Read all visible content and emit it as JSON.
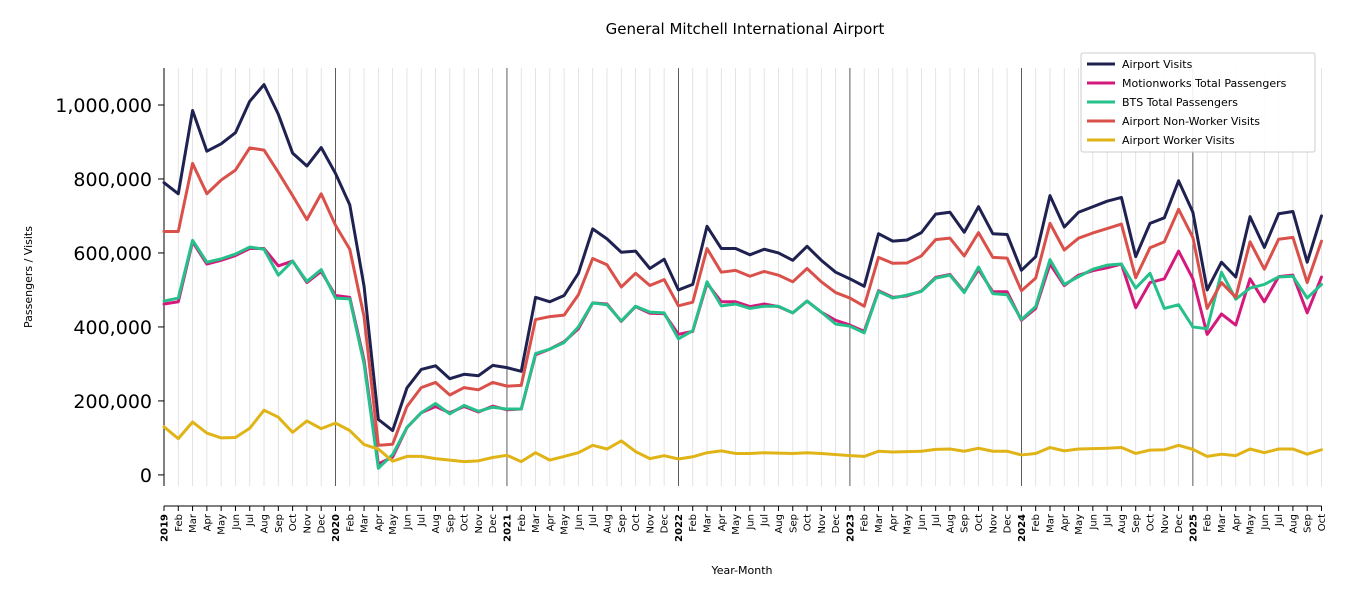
{
  "chart_data": {
    "type": "line",
    "title": "General Mitchell International Airport",
    "xlabel": "Year-Month",
    "ylabel": "Passengers / Visits",
    "ylim": [
      -30000,
      1100000
    ],
    "yticks": [
      0,
      200000,
      400000,
      600000,
      800000,
      1000000
    ],
    "ytick_labels": [
      "0",
      "200,000",
      "400,000",
      "600,000",
      "800,000",
      "1,000,000"
    ],
    "grid": "vertical monthly gridlines; darker lines at each January",
    "legend_position": "top-right",
    "x": [
      "2019",
      "Feb",
      "Mar",
      "Apr",
      "May",
      "Jun",
      "Jul",
      "Aug",
      "Sep",
      "Oct",
      "Nov",
      "Dec",
      "2020",
      "Feb",
      "Mar",
      "Apr",
      "May",
      "Jun",
      "Jul",
      "Aug",
      "Sep",
      "Oct",
      "Nov",
      "Dec",
      "2021",
      "Feb",
      "Mar",
      "Apr",
      "May",
      "Jun",
      "Jul",
      "Aug",
      "Sep",
      "Oct",
      "Nov",
      "Dec",
      "2022",
      "Feb",
      "Mar",
      "Apr",
      "May",
      "Jun",
      "Jul",
      "Aug",
      "Sep",
      "Oct",
      "Nov",
      "Dec",
      "2023",
      "Feb",
      "Mar",
      "Apr",
      "May",
      "Jun",
      "Jul",
      "Aug",
      "Sep",
      "Oct",
      "Nov",
      "Dec",
      "2024",
      "Feb",
      "Mar",
      "Apr",
      "May",
      "Jun",
      "Jul",
      "Aug",
      "Sep",
      "Oct",
      "Nov",
      "Dec",
      "2025",
      "Feb",
      "Mar",
      "Apr",
      "May",
      "Jun",
      "Jul",
      "Aug",
      "Sep",
      "Oct"
    ],
    "series": [
      {
        "name": "Airport Visits",
        "color": "#1f2150",
        "values": [
          790000,
          760000,
          985000,
          875000,
          895000,
          925000,
          1010000,
          1055000,
          975000,
          870000,
          835000,
          885000,
          815000,
          730000,
          510000,
          150000,
          120000,
          235000,
          285000,
          295000,
          260000,
          272000,
          268000,
          296000,
          290000,
          280000,
          480000,
          468000,
          485000,
          545000,
          665000,
          638000,
          602000,
          605000,
          558000,
          583000,
          500000,
          515000,
          672000,
          612000,
          612000,
          595000,
          610000,
          600000,
          580000,
          618000,
          580000,
          548000,
          530000,
          510000,
          652000,
          632000,
          635000,
          655000,
          705000,
          710000,
          656000,
          725000,
          652000,
          650000,
          553000,
          590000,
          755000,
          670000,
          710000,
          725000,
          740000,
          750000,
          590000,
          680000,
          695000,
          795000,
          710000,
          500000,
          575000,
          535000,
          698000,
          615000,
          706000,
          712000,
          575000,
          700000
        ]
      },
      {
        "name": "Motionworks Total Passengers",
        "color": "#d4197d",
        "values": [
          462000,
          468000,
          630000,
          570000,
          580000,
          593000,
          612000,
          612000,
          565000,
          578000,
          520000,
          550000,
          485000,
          480000,
          310000,
          30000,
          48000,
          128000,
          168000,
          185000,
          168000,
          185000,
          170000,
          186000,
          176000,
          178000,
          325000,
          340000,
          360000,
          395000,
          465000,
          462000,
          415000,
          455000,
          437000,
          436000,
          380000,
          388000,
          518000,
          468000,
          468000,
          455000,
          462000,
          455000,
          438000,
          470000,
          440000,
          418000,
          405000,
          388000,
          498000,
          480000,
          484000,
          497000,
          534000,
          542000,
          495000,
          555000,
          495000,
          495000,
          418000,
          450000,
          570000,
          512000,
          540000,
          552000,
          560000,
          570000,
          452000,
          520000,
          530000,
          605000,
          530000,
          380000,
          435000,
          405000,
          530000,
          468000,
          536000,
          540000,
          438000,
          535000
        ]
      },
      {
        "name": "BTS Total Passengers",
        "color": "#26c08a",
        "values": [
          470000,
          478000,
          634000,
          575000,
          584000,
          597000,
          616000,
          610000,
          540000,
          578000,
          523000,
          555000,
          478000,
          476000,
          300000,
          18000,
          55000,
          128000,
          168000,
          193000,
          165000,
          188000,
          172000,
          183000,
          178000,
          178000,
          328000,
          340000,
          358000,
          400000,
          465000,
          460000,
          416000,
          456000,
          440000,
          438000,
          368000,
          390000,
          522000,
          457000,
          462000,
          450000,
          456000,
          456000,
          438000,
          470000,
          440000,
          408000,
          402000,
          384000,
          496000,
          478000,
          486000,
          496000,
          532000,
          540000,
          493000,
          562000,
          490000,
          487000,
          420000,
          455000,
          582000,
          515000,
          536000,
          556000,
          567000,
          570000,
          505000,
          545000,
          450000,
          460000,
          400000,
          395000,
          548000,
          475000,
          505000,
          515000,
          535000,
          537000,
          478000,
          515000
        ]
      },
      {
        "name": "Airport Non-Worker Visits",
        "color": "#d9514a",
        "values": [
          658000,
          658000,
          842000,
          760000,
          797000,
          824000,
          884000,
          878000,
          818000,
          755000,
          690000,
          760000,
          675000,
          610000,
          428000,
          80000,
          83000,
          185000,
          236000,
          250000,
          216000,
          236000,
          230000,
          250000,
          240000,
          242000,
          420000,
          428000,
          432000,
          487000,
          585000,
          568000,
          508000,
          545000,
          512000,
          528000,
          457000,
          467000,
          612000,
          548000,
          553000,
          537000,
          550000,
          540000,
          522000,
          558000,
          522000,
          493000,
          478000,
          456000,
          588000,
          572000,
          573000,
          592000,
          636000,
          640000,
          592000,
          655000,
          588000,
          586000,
          498000,
          532000,
          680000,
          608000,
          640000,
          654000,
          666000,
          678000,
          533000,
          614000,
          630000,
          718000,
          642000,
          450000,
          520000,
          480000,
          630000,
          556000,
          637000,
          642000,
          520000,
          632000
        ]
      },
      {
        "name": "Airport Worker Visits",
        "color": "#e0b416",
        "values": [
          130000,
          98000,
          143000,
          113000,
          100000,
          101000,
          126000,
          175000,
          156000,
          115000,
          146000,
          125000,
          140000,
          120000,
          82000,
          70000,
          37000,
          50000,
          50000,
          44000,
          40000,
          36000,
          38000,
          47000,
          53000,
          36000,
          60000,
          40000,
          50000,
          60000,
          80000,
          70000,
          92000,
          63000,
          44000,
          52000,
          43000,
          49000,
          60000,
          65000,
          58000,
          58000,
          60000,
          59000,
          58000,
          60000,
          58000,
          55000,
          52000,
          50000,
          64000,
          62000,
          63000,
          64000,
          69000,
          70000,
          64000,
          72000,
          64000,
          64000,
          54000,
          58000,
          74000,
          65000,
          70000,
          71000,
          72000,
          74000,
          58000,
          67000,
          68000,
          80000,
          69000,
          50000,
          56000,
          52000,
          70000,
          60000,
          70000,
          70000,
          56000,
          68000
        ]
      }
    ]
  }
}
